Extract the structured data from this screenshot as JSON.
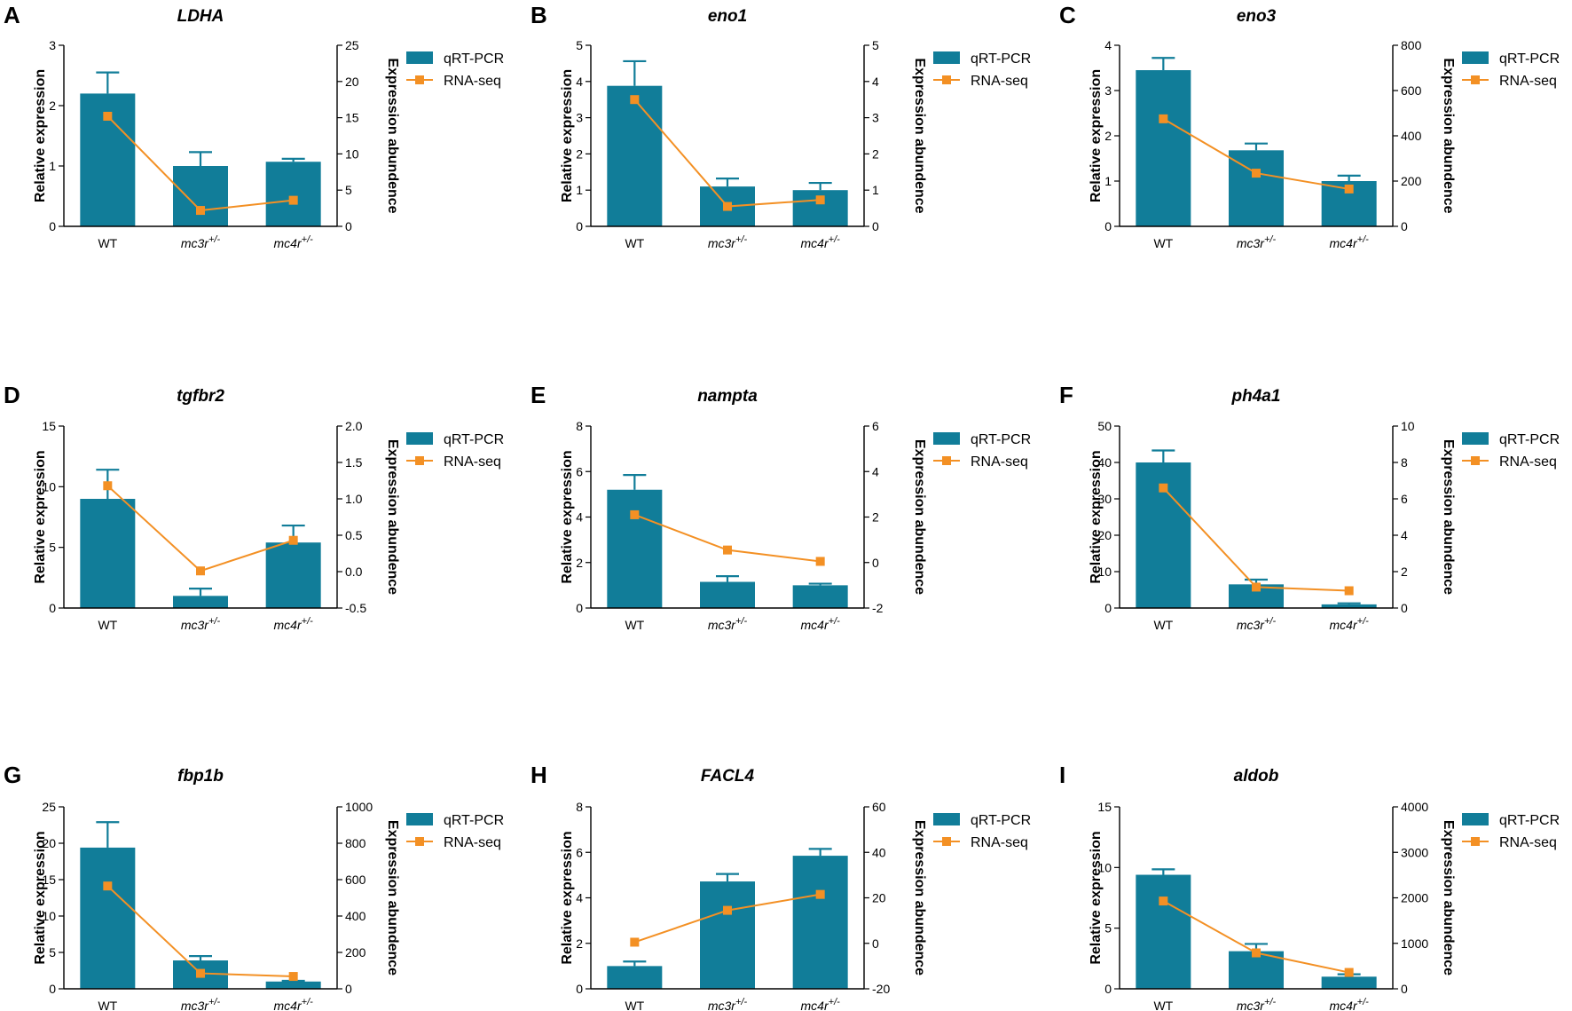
{
  "figure": {
    "colors": {
      "bar": "#117d99",
      "line": "#f39024",
      "axis": "#000000"
    },
    "legend": {
      "bar_label": "qRT-PCR",
      "line_label": "RNA-seq"
    },
    "left_axis_label": "Relative expression",
    "right_axis_label": "Expression abundence"
  },
  "chart_data": [
    {
      "panel": "A",
      "title": "LDHA",
      "type": "bar+line",
      "categories": [
        {
          "base": "WT",
          "sup": ""
        },
        {
          "base": "mc3r",
          "sup": "+/-"
        },
        {
          "base": "mc4r",
          "sup": "+/-"
        }
      ],
      "bar_values": [
        2.2,
        1.0,
        1.07
      ],
      "bar_errors": [
        0.35,
        0.23,
        0.05
      ],
      "left_ticks": [
        "0",
        "1",
        "2",
        "3"
      ],
      "left_tick_values": [
        0,
        1,
        2,
        3
      ],
      "ylim_left": [
        0,
        3
      ],
      "line_values": [
        15.2,
        2.2,
        3.6
      ],
      "right_ticks": [
        "0",
        "5",
        "10",
        "15",
        "20",
        "25"
      ],
      "right_tick_values": [
        0,
        5,
        10,
        15,
        20,
        25
      ],
      "ylim_right": [
        0,
        25
      ]
    },
    {
      "panel": "B",
      "title": "eno1",
      "type": "bar+line",
      "categories": [
        {
          "base": "WT",
          "sup": ""
        },
        {
          "base": "mc3r",
          "sup": "+/-"
        },
        {
          "base": "mc4r",
          "sup": "+/-"
        }
      ],
      "bar_values": [
        3.88,
        1.1,
        1.0
      ],
      "bar_errors": [
        0.68,
        0.22,
        0.2
      ],
      "left_ticks": [
        "0",
        "1",
        "2",
        "3",
        "4",
        "5"
      ],
      "left_tick_values": [
        0,
        1,
        2,
        3,
        4,
        5
      ],
      "ylim_left": [
        0,
        5
      ],
      "line_values": [
        3.5,
        0.55,
        0.73
      ],
      "right_ticks": [
        "0",
        "1",
        "2",
        "3",
        "4",
        "5"
      ],
      "right_tick_values": [
        0,
        1,
        2,
        3,
        4,
        5
      ],
      "ylim_right": [
        0,
        5
      ]
    },
    {
      "panel": "C",
      "title": "eno3",
      "type": "bar+line",
      "categories": [
        {
          "base": "WT",
          "sup": ""
        },
        {
          "base": "mc3r",
          "sup": "+/-"
        },
        {
          "base": "mc4r",
          "sup": "+/-"
        }
      ],
      "bar_values": [
        3.45,
        1.68,
        1.0
      ],
      "bar_errors": [
        0.27,
        0.15,
        0.12
      ],
      "left_ticks": [
        "0",
        "1",
        "2",
        "3",
        "4"
      ],
      "left_tick_values": [
        0,
        1,
        2,
        3,
        4
      ],
      "ylim_left": [
        0,
        4
      ],
      "line_values": [
        475,
        235,
        165
      ],
      "right_ticks": [
        "0",
        "200",
        "400",
        "600",
        "800"
      ],
      "right_tick_values": [
        0,
        200,
        400,
        600,
        800
      ],
      "ylim_right": [
        0,
        800
      ]
    },
    {
      "panel": "D",
      "title": "tgfbr2",
      "type": "bar+line",
      "categories": [
        {
          "base": "WT",
          "sup": ""
        },
        {
          "base": "mc3r",
          "sup": "+/-"
        },
        {
          "base": "mc4r",
          "sup": "+/-"
        }
      ],
      "bar_values": [
        9.0,
        1.0,
        5.4
      ],
      "bar_errors": [
        2.4,
        0.6,
        1.4
      ],
      "left_ticks": [
        "0",
        "5",
        "10",
        "15"
      ],
      "left_tick_values": [
        0,
        5,
        10,
        15
      ],
      "ylim_left": [
        0,
        15
      ],
      "line_values": [
        1.18,
        0.01,
        0.43
      ],
      "right_ticks": [
        "-0.5",
        "0.0",
        "0.5",
        "1.0",
        "1.5",
        "2.0"
      ],
      "right_tick_values": [
        -0.5,
        0,
        0.5,
        1,
        1.5,
        2
      ],
      "ylim_right": [
        -0.5,
        2.0
      ]
    },
    {
      "panel": "E",
      "title": "nampta",
      "type": "bar+line",
      "categories": [
        {
          "base": "WT",
          "sup": ""
        },
        {
          "base": "mc3r",
          "sup": "+/-"
        },
        {
          "base": "mc4r",
          "sup": "+/-"
        }
      ],
      "bar_values": [
        5.2,
        1.15,
        1.0
      ],
      "bar_errors": [
        0.65,
        0.25,
        0.07
      ],
      "left_ticks": [
        "0",
        "2",
        "4",
        "6",
        "8"
      ],
      "left_tick_values": [
        0,
        2,
        4,
        6,
        8
      ],
      "ylim_left": [
        0,
        8
      ],
      "line_values": [
        2.1,
        0.55,
        0.05
      ],
      "right_ticks": [
        "-2",
        "0",
        "2",
        "4",
        "6"
      ],
      "right_tick_values": [
        -2,
        0,
        2,
        4,
        6
      ],
      "ylim_right": [
        -2,
        6
      ]
    },
    {
      "panel": "F",
      "title": "ph4a1",
      "type": "bar+line",
      "categories": [
        {
          "base": "WT",
          "sup": ""
        },
        {
          "base": "mc3r",
          "sup": "+/-"
        },
        {
          "base": "mc4r",
          "sup": "+/-"
        }
      ],
      "bar_values": [
        40.0,
        6.5,
        1.0
      ],
      "bar_errors": [
        3.3,
        1.3,
        0.3
      ],
      "left_ticks": [
        "0",
        "10",
        "20",
        "30",
        "40",
        "50"
      ],
      "left_tick_values": [
        0,
        10,
        20,
        30,
        40,
        50
      ],
      "ylim_left": [
        0,
        50
      ],
      "line_values": [
        6.6,
        1.15,
        0.95
      ],
      "right_ticks": [
        "0",
        "2",
        "4",
        "6",
        "8",
        "10"
      ],
      "right_tick_values": [
        0,
        2,
        4,
        6,
        8,
        10
      ],
      "ylim_right": [
        0,
        10
      ]
    },
    {
      "panel": "G",
      "title": "fbp1b",
      "type": "bar+line",
      "categories": [
        {
          "base": "WT",
          "sup": ""
        },
        {
          "base": "mc3r",
          "sup": "+/-"
        },
        {
          "base": "mc4r",
          "sup": "+/-"
        }
      ],
      "bar_values": [
        19.4,
        3.9,
        1.0
      ],
      "bar_errors": [
        3.5,
        0.6,
        0.1
      ],
      "left_ticks": [
        "0",
        "5",
        "10",
        "15",
        "20",
        "25"
      ],
      "left_tick_values": [
        0,
        5,
        10,
        15,
        20,
        25
      ],
      "ylim_left": [
        0,
        25
      ],
      "line_values": [
        565,
        85,
        68
      ],
      "right_ticks": [
        "0",
        "200",
        "400",
        "600",
        "800",
        "1000"
      ],
      "right_tick_values": [
        0,
        200,
        400,
        600,
        800,
        1000
      ],
      "ylim_right": [
        0,
        1000
      ]
    },
    {
      "panel": "H",
      "title": "FACL4",
      "type": "bar+line",
      "categories": [
        {
          "base": "WT",
          "sup": ""
        },
        {
          "base": "mc3r",
          "sup": "+/-"
        },
        {
          "base": "mc4r",
          "sup": "+/-"
        }
      ],
      "bar_values": [
        1.0,
        4.72,
        5.85
      ],
      "bar_errors": [
        0.2,
        0.33,
        0.3
      ],
      "left_ticks": [
        "0",
        "2",
        "4",
        "6",
        "8"
      ],
      "left_tick_values": [
        0,
        2,
        4,
        6,
        8
      ],
      "ylim_left": [
        0,
        8
      ],
      "line_values": [
        0.5,
        14.5,
        21.5
      ],
      "right_ticks": [
        "-20",
        "0",
        "20",
        "40",
        "60"
      ],
      "right_tick_values": [
        -20,
        0,
        20,
        40,
        60
      ],
      "ylim_right": [
        -20,
        60
      ]
    },
    {
      "panel": "I",
      "title": "aldob",
      "type": "bar+line",
      "categories": [
        {
          "base": "WT",
          "sup": ""
        },
        {
          "base": "mc3r",
          "sup": "+/-"
        },
        {
          "base": "mc4r",
          "sup": "+/-"
        }
      ],
      "bar_values": [
        9.4,
        3.1,
        1.0
      ],
      "bar_errors": [
        0.45,
        0.6,
        0.2
      ],
      "left_ticks": [
        "0",
        "5",
        "10",
        "15"
      ],
      "left_tick_values": [
        0,
        5,
        10,
        15
      ],
      "ylim_left": [
        0,
        15
      ],
      "line_values": [
        1930,
        790,
        360
      ],
      "right_ticks": [
        "0",
        "1000",
        "2000",
        "3000",
        "4000"
      ],
      "right_tick_values": [
        0,
        1000,
        2000,
        3000,
        4000
      ],
      "ylim_right": [
        0,
        4000
      ]
    }
  ]
}
